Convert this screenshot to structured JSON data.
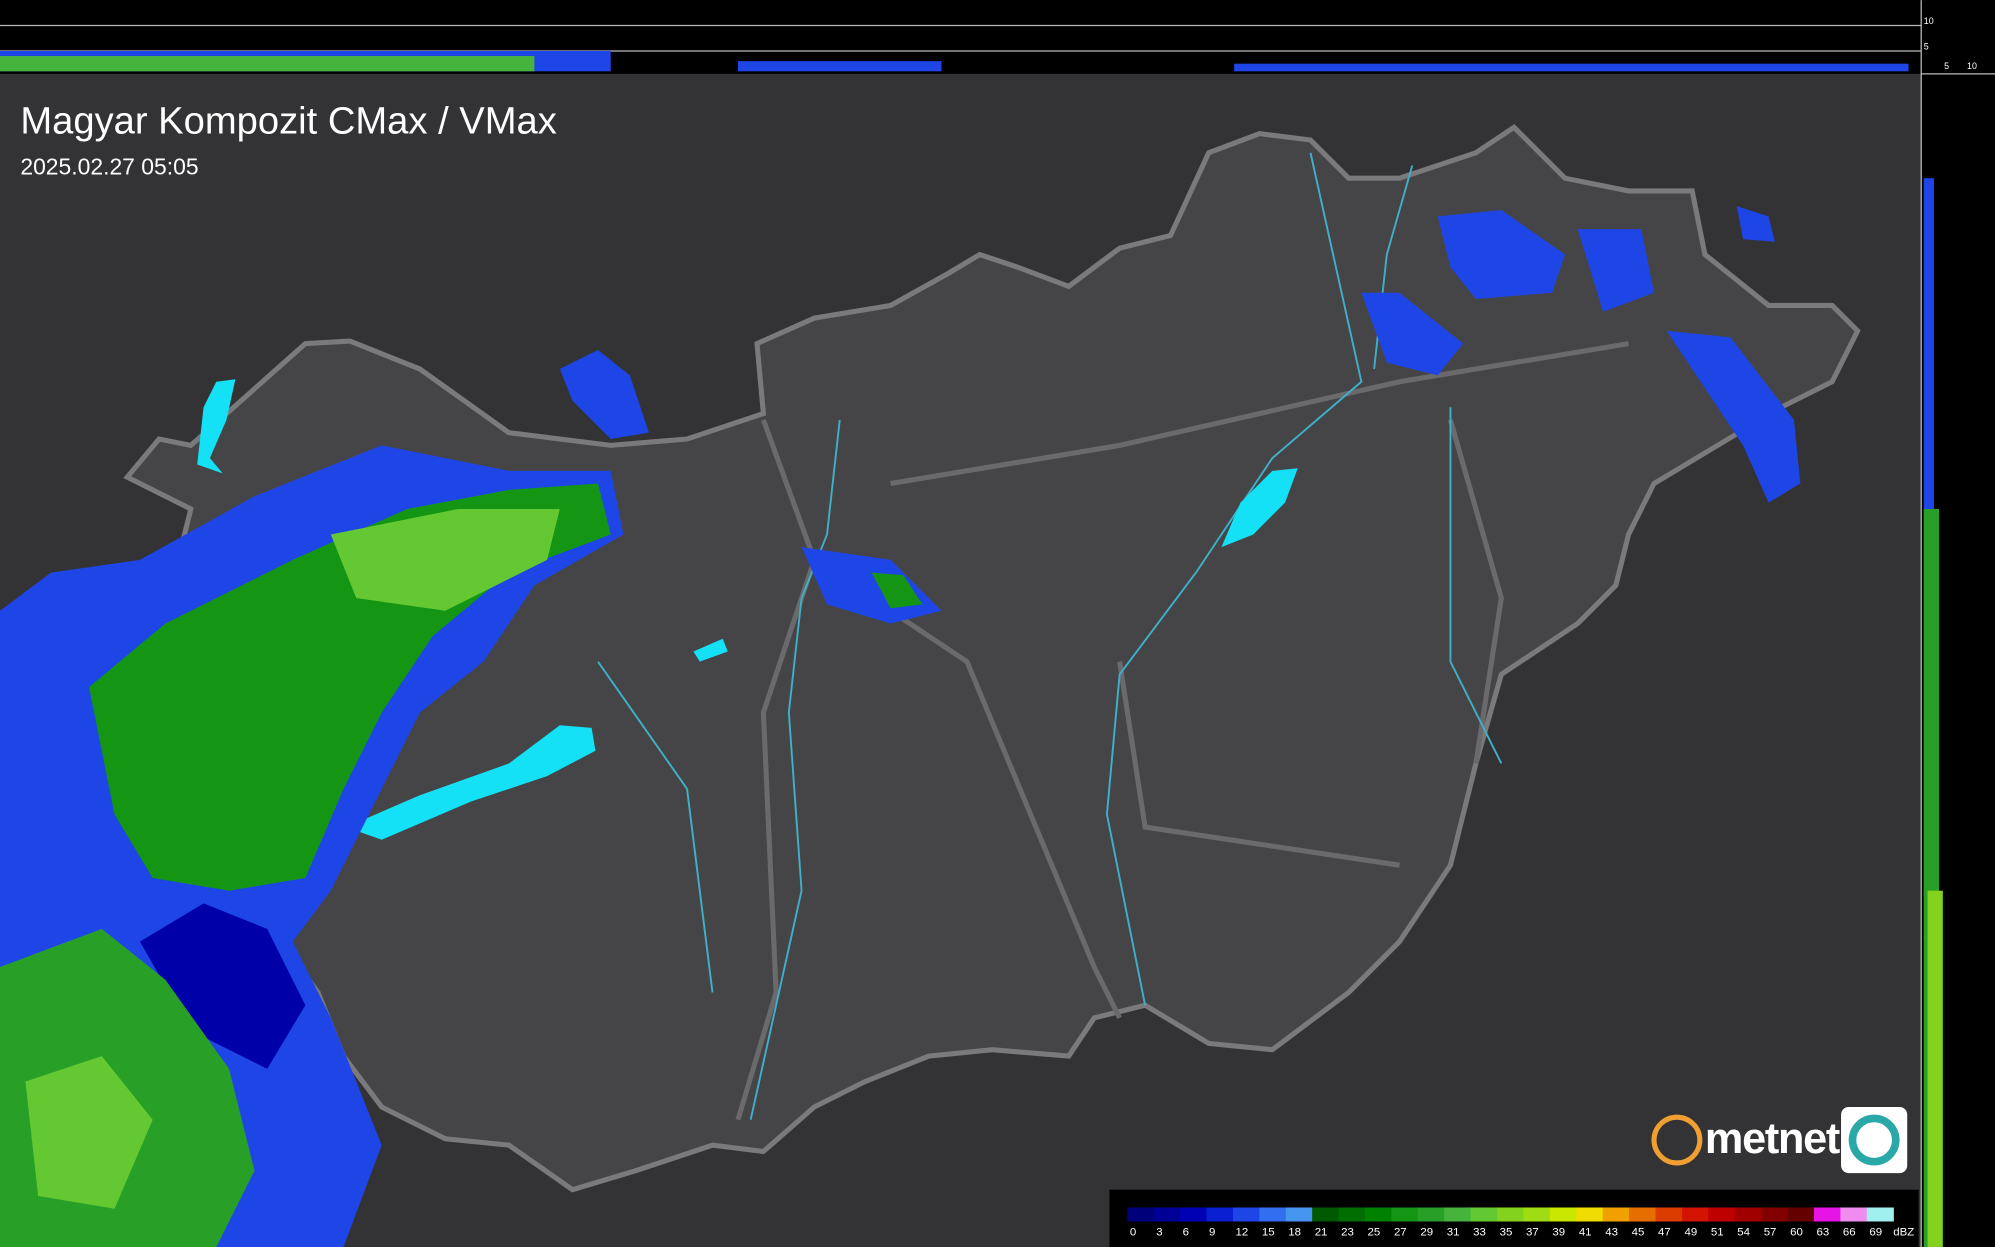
{
  "header": {
    "title": "Magyar Kompozit CMax / VMax",
    "timestamp": "2025.02.27 05:05"
  },
  "logo": "metnet",
  "top_profile": {
    "ticks": [
      "10",
      "5"
    ]
  },
  "side_profile": {
    "ticks": [
      "5",
      "10"
    ]
  },
  "legend": {
    "unit": "dBZ",
    "items": [
      {
        "label": "0",
        "color": "#00007a"
      },
      {
        "label": "3",
        "color": "#000096"
      },
      {
        "label": "6",
        "color": "#0000b4"
      },
      {
        "label": "9",
        "color": "#0a1ed2"
      },
      {
        "label": "12",
        "color": "#1e46e6"
      },
      {
        "label": "15",
        "color": "#326ef0"
      },
      {
        "label": "18",
        "color": "#4696f0"
      },
      {
        "label": "21",
        "color": "#005a00"
      },
      {
        "label": "23",
        "color": "#006e00"
      },
      {
        "label": "25",
        "color": "#008200"
      },
      {
        "label": "27",
        "color": "#149614"
      },
      {
        "label": "29",
        "color": "#28a028"
      },
      {
        "label": "31",
        "color": "#46b43c"
      },
      {
        "label": "33",
        "color": "#64c832"
      },
      {
        "label": "35",
        "color": "#82d21e"
      },
      {
        "label": "37",
        "color": "#a0dc14"
      },
      {
        "label": "39",
        "color": "#c8e600"
      },
      {
        "label": "41",
        "color": "#f0dc00"
      },
      {
        "label": "43",
        "color": "#f0a000"
      },
      {
        "label": "45",
        "color": "#e66e00"
      },
      {
        "label": "47",
        "color": "#dc3c00"
      },
      {
        "label": "49",
        "color": "#d21400"
      },
      {
        "label": "51",
        "color": "#be0000"
      },
      {
        "label": "54",
        "color": "#a00000"
      },
      {
        "label": "57",
        "color": "#820000"
      },
      {
        "label": "60",
        "color": "#640000"
      },
      {
        "label": "63",
        "color": "#e614e6"
      },
      {
        "label": "66",
        "color": "#f08cf0"
      },
      {
        "label": "69",
        "color": "#a0f0f0"
      }
    ]
  }
}
